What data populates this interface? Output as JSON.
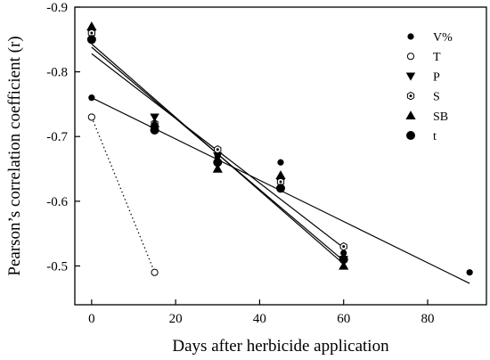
{
  "chart_data": {
    "type": "scatter",
    "xlabel": "Days after herbicide application",
    "ylabel": "Pearson’s correlation coefficient (r)",
    "xlim": [
      -4,
      94
    ],
    "ylim": [
      -0.9,
      -0.44
    ],
    "y_axis_inverted": true,
    "x_ticks": [
      0,
      20,
      40,
      60,
      80
    ],
    "y_ticks": [
      -0.9,
      -0.8,
      -0.7,
      -0.6,
      -0.5
    ],
    "x_tick_labels": [
      "0",
      "20",
      "40",
      "60",
      "80"
    ],
    "y_tick_labels": [
      "-0.9",
      "-0.8",
      "-0.7",
      "-0.6",
      "-0.5"
    ],
    "legend_position": "top-right",
    "series": [
      {
        "name": "V%",
        "marker": "small-filled-circle",
        "points": [
          [
            0,
            -0.76
          ],
          [
            15,
            -0.72
          ],
          [
            30,
            -0.67
          ],
          [
            45,
            -0.66
          ],
          [
            60,
            -0.52
          ],
          [
            90,
            -0.49
          ]
        ],
        "fit": {
          "style": "solid",
          "x": [
            0,
            90
          ],
          "y": [
            -0.76,
            -0.473
          ]
        }
      },
      {
        "name": "T",
        "marker": "open-circle",
        "points": [
          [
            0,
            -0.73
          ],
          [
            15,
            -0.49
          ]
        ],
        "fit": {
          "style": "dotted",
          "x": [
            0,
            15
          ],
          "y": [
            -0.73,
            -0.49
          ]
        }
      },
      {
        "name": "P",
        "marker": "filled-triangle-down",
        "points": [
          [
            0,
            -0.86
          ],
          [
            15,
            -0.73
          ],
          [
            30,
            -0.67
          ],
          [
            45,
            -0.63
          ],
          [
            60,
            -0.51
          ]
        ],
        "fit": {
          "style": "solid",
          "x": [
            0,
            60
          ],
          "y": [
            -0.838,
            -0.508
          ]
        }
      },
      {
        "name": "S",
        "marker": "hexagon",
        "points": [
          [
            0,
            -0.86
          ],
          [
            15,
            -0.72
          ],
          [
            30,
            -0.68
          ],
          [
            45,
            -0.63
          ],
          [
            60,
            -0.53
          ]
        ],
        "fit": {
          "style": "solid",
          "x": [
            0,
            60
          ],
          "y": [
            -0.828,
            -0.528
          ]
        }
      },
      {
        "name": "SB",
        "marker": "filled-triangle-up",
        "points": [
          [
            0,
            -0.87
          ],
          [
            15,
            -0.72
          ],
          [
            30,
            -0.65
          ],
          [
            45,
            -0.64
          ],
          [
            60,
            -0.5
          ]
        ],
        "fit": {
          "style": "solid",
          "x": [
            0,
            60
          ],
          "y": [
            -0.843,
            -0.503
          ]
        }
      },
      {
        "name": "t",
        "marker": "large-filled-circle",
        "points": [
          [
            0,
            -0.85
          ],
          [
            15,
            -0.71
          ],
          [
            30,
            -0.66
          ],
          [
            45,
            -0.62
          ],
          [
            60,
            -0.51
          ]
        ],
        "fit": null
      }
    ]
  }
}
